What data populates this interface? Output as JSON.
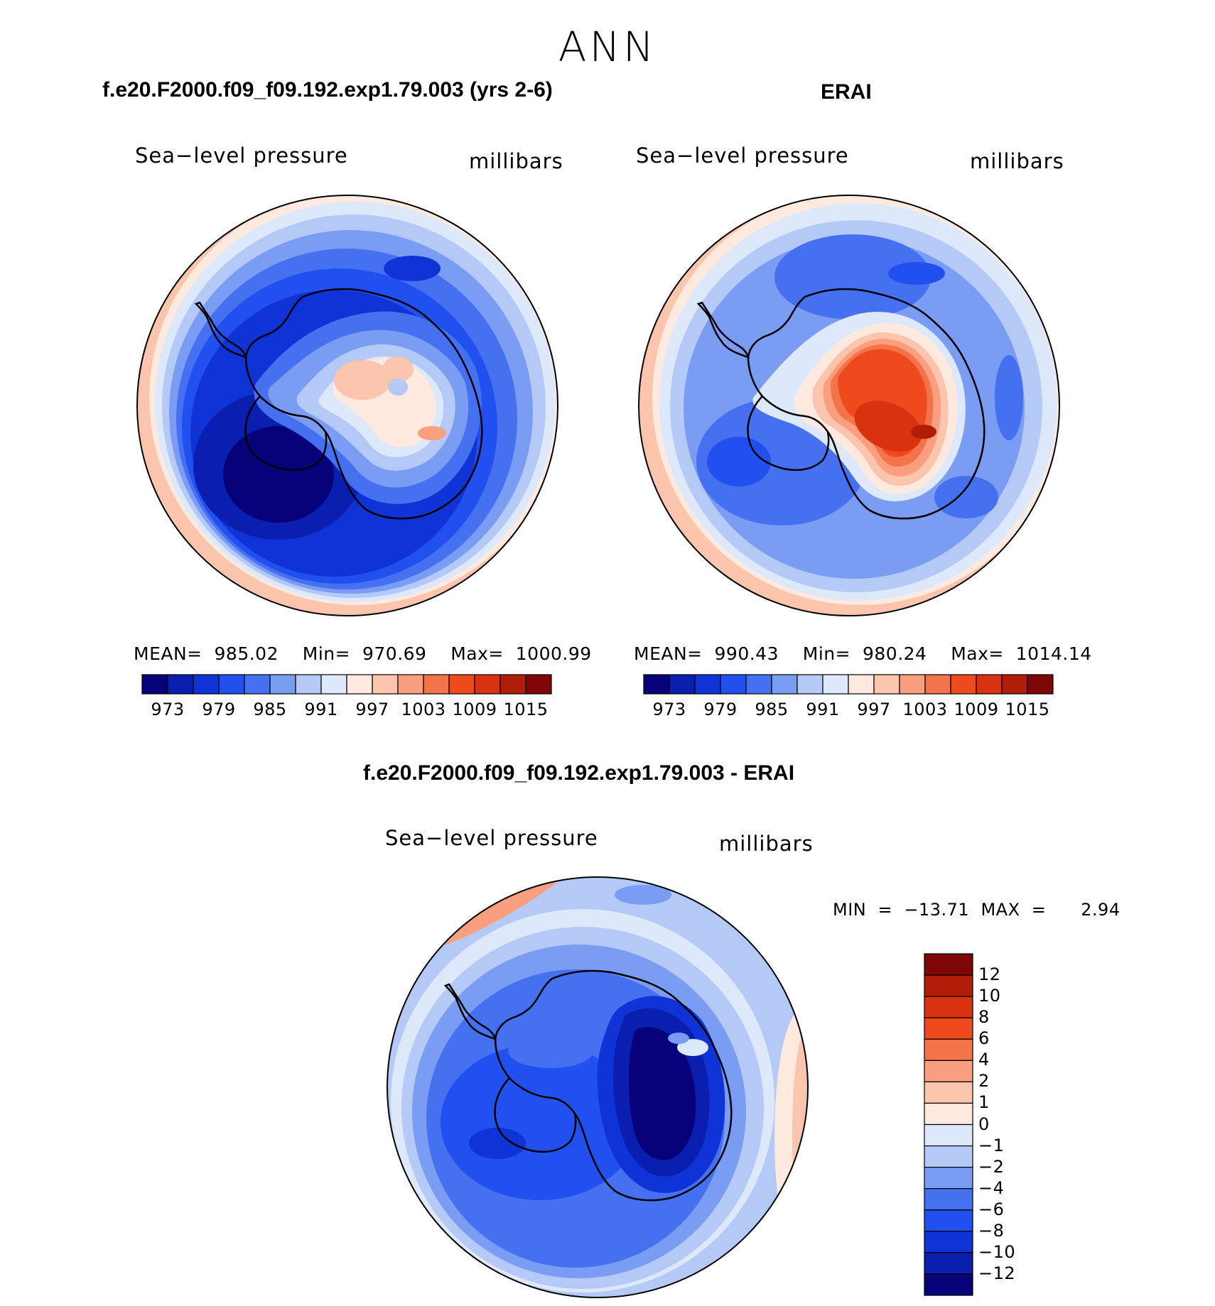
{
  "season": "ANN",
  "panels": [
    {
      "case": "f.e20.F2000.f09_f09.192.exp1.79.003 (yrs 2-6)",
      "variable": "Sea−level pressure",
      "units": "millibars",
      "stats": "MEAN=  985.02    Min=  970.69    Max=  1000.99"
    },
    {
      "case": "ERAI",
      "variable": "Sea−level pressure",
      "units": "millibars",
      "stats": "MEAN=  990.43    Min=  980.24    Max=  1014.14"
    },
    {
      "case": "f.e20.F2000.f09_f09.192.exp1.79.003 - ERAI",
      "variable": "Sea−level pressure",
      "units": "millibars",
      "stats": "MIN  =  −13.71  MAX  =      2.94"
    }
  ],
  "colorbar_top": {
    "ticks": [
      "973",
      "979",
      "985",
      "991",
      "997",
      "1003",
      "1009",
      "1015"
    ],
    "colors": [
      "#07027a",
      "#0a1fb0",
      "#1033d6",
      "#2150ef",
      "#4571f0",
      "#7a9cf2",
      "#b4c9f6",
      "#dde9fb",
      "#fde9dd",
      "#fbc4ad",
      "#f99f7f",
      "#f3734a",
      "#ef4a1e",
      "#d83210",
      "#b01e0a",
      "#7e0606"
    ]
  },
  "colorbar_diff": {
    "ticks": [
      "12",
      "10",
      "8",
      "6",
      "4",
      "2",
      "1",
      "0",
      "−1",
      "−2",
      "−4",
      "−6",
      "−8",
      "−10",
      "−12"
    ],
    "colors": [
      "#7e0606",
      "#b01e0a",
      "#d83210",
      "#ef4a1e",
      "#f3734a",
      "#f99f7f",
      "#fbc4ad",
      "#fde9dd",
      "#dde9fb",
      "#b4c9f6",
      "#7a9cf2",
      "#4571f0",
      "#2150ef",
      "#1033d6",
      "#0a1fb0",
      "#07027a"
    ]
  }
}
